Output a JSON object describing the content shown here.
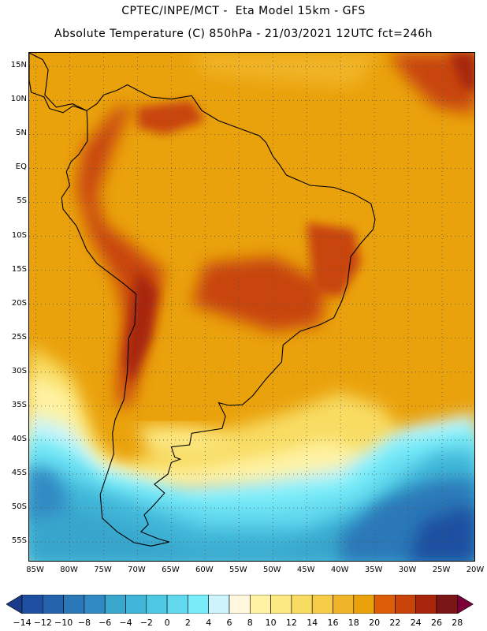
{
  "header": {
    "line1": "CPTEC/INPE/MCT -  Eta Model 15km - GFS",
    "line2": "Absolute Temperature (C) 850hPa - 21/03/2021 12UTC fct=246h"
  },
  "map": {
    "lat_range": [
      -58,
      17
    ],
    "lon_range": [
      -86,
      -20
    ],
    "lat_ticks": [
      {
        "value": 15,
        "label": "15N"
      },
      {
        "value": 10,
        "label": "10N"
      },
      {
        "value": 5,
        "label": "5N"
      },
      {
        "value": 0,
        "label": "EQ"
      },
      {
        "value": -5,
        "label": "5S"
      },
      {
        "value": -10,
        "label": "10S"
      },
      {
        "value": -15,
        "label": "15S"
      },
      {
        "value": -20,
        "label": "20S"
      },
      {
        "value": -25,
        "label": "25S"
      },
      {
        "value": -30,
        "label": "30S"
      },
      {
        "value": -35,
        "label": "35S"
      },
      {
        "value": -40,
        "label": "40S"
      },
      {
        "value": -45,
        "label": "45S"
      },
      {
        "value": -50,
        "label": "50S"
      },
      {
        "value": -55,
        "label": "55S"
      }
    ],
    "lon_ticks": [
      {
        "value": -85,
        "label": "85W"
      },
      {
        "value": -80,
        "label": "80W"
      },
      {
        "value": -75,
        "label": "75W"
      },
      {
        "value": -70,
        "label": "70W"
      },
      {
        "value": -65,
        "label": "65W"
      },
      {
        "value": -60,
        "label": "60W"
      },
      {
        "value": -55,
        "label": "55W"
      },
      {
        "value": -50,
        "label": "50W"
      },
      {
        "value": -45,
        "label": "45W"
      },
      {
        "value": -40,
        "label": "40W"
      },
      {
        "value": -35,
        "label": "35W"
      },
      {
        "value": -30,
        "label": "30W"
      },
      {
        "value": -25,
        "label": "25W"
      },
      {
        "value": -20,
        "label": "20W"
      }
    ],
    "grid": "dotted",
    "coastline_outline": [
      [
        -77.5,
        8.5
      ],
      [
        -76,
        9.5
      ],
      [
        -75,
        10.8
      ],
      [
        -73,
        11.5
      ],
      [
        -71.5,
        12.3
      ],
      [
        -70,
        11.5
      ],
      [
        -68,
        10.5
      ],
      [
        -65,
        10.2
      ],
      [
        -62,
        10.7
      ],
      [
        -60.5,
        8.5
      ],
      [
        -58,
        7
      ],
      [
        -55,
        5.9
      ],
      [
        -52,
        4.8
      ],
      [
        -51,
        3.8
      ],
      [
        -50,
        1.8
      ],
      [
        -49,
        0.5
      ],
      [
        -48,
        -1
      ],
      [
        -44.5,
        -2.5
      ],
      [
        -41,
        -2.8
      ],
      [
        -38,
        -3.8
      ],
      [
        -35.5,
        -5.2
      ],
      [
        -34.9,
        -7.5
      ],
      [
        -35.2,
        -9
      ],
      [
        -37,
        -11
      ],
      [
        -38.5,
        -13
      ],
      [
        -39,
        -17
      ],
      [
        -39.8,
        -19.5
      ],
      [
        -41,
        -22
      ],
      [
        -43,
        -23
      ],
      [
        -46,
        -24
      ],
      [
        -48.5,
        -26
      ],
      [
        -48.7,
        -28.5
      ],
      [
        -51,
        -31
      ],
      [
        -53,
        -33.5
      ],
      [
        -54.5,
        -34.8
      ],
      [
        -56.5,
        -34.9
      ],
      [
        -58,
        -34.5
      ],
      [
        -57,
        -36.5
      ],
      [
        -57.5,
        -38.3
      ],
      [
        -62,
        -39
      ],
      [
        -62.3,
        -40.7
      ],
      [
        -65,
        -41
      ],
      [
        -64.5,
        -42.5
      ],
      [
        -63.7,
        -42.8
      ],
      [
        -65,
        -43.3
      ],
      [
        -65.5,
        -45
      ],
      [
        -67.5,
        -46.5
      ],
      [
        -66,
        -47.8
      ],
      [
        -67.8,
        -49.8
      ],
      [
        -69,
        -51
      ],
      [
        -68.4,
        -52.4
      ],
      [
        -69.5,
        -53.5
      ],
      [
        -67,
        -54.5
      ],
      [
        -65.3,
        -55
      ],
      [
        -68,
        -55.6
      ],
      [
        -70.5,
        -55.1
      ],
      [
        -73,
        -53.5
      ],
      [
        -75.2,
        -51.5
      ],
      [
        -75.5,
        -48
      ],
      [
        -74.5,
        -45
      ],
      [
        -73.5,
        -42
      ],
      [
        -73.7,
        -39
      ],
      [
        -73.3,
        -37
      ],
      [
        -72,
        -34
      ],
      [
        -71.5,
        -30
      ],
      [
        -71.3,
        -25
      ],
      [
        -70.4,
        -23
      ],
      [
        -70.2,
        -18.5
      ],
      [
        -72,
        -17
      ],
      [
        -76,
        -14
      ],
      [
        -77.5,
        -12
      ],
      [
        -79,
        -8.5
      ],
      [
        -81,
        -6
      ],
      [
        -81.2,
        -4.3
      ],
      [
        -80,
        -2.5
      ],
      [
        -80.5,
        -0.5
      ],
      [
        -79.8,
        1
      ],
      [
        -78.7,
        2
      ],
      [
        -77.4,
        4
      ],
      [
        -77.4,
        6.8
      ],
      [
        -77.5,
        8.5
      ]
    ],
    "central_america_outline": [
      [
        -77.5,
        8.5
      ],
      [
        -79.5,
        9.2
      ],
      [
        -81,
        8.2
      ],
      [
        -83,
        8.8
      ],
      [
        -83.8,
        10.5
      ],
      [
        -85.7,
        11.2
      ],
      [
        -86,
        13
      ],
      [
        -86,
        17
      ],
      [
        -84,
        16
      ],
      [
        -83.2,
        14.5
      ],
      [
        -83.5,
        12
      ],
      [
        -83.7,
        10.8
      ],
      [
        -82,
        9
      ],
      [
        -79.6,
        9.5
      ],
      [
        -77.5,
        8.5
      ]
    ],
    "color_scale": {
      "levels": [
        -14,
        -12,
        -10,
        -8,
        -6,
        -4,
        -2,
        0,
        2,
        4,
        6,
        8,
        10,
        12,
        14,
        16,
        18,
        20,
        22,
        24,
        26,
        28
      ],
      "colors": [
        "#1a3a8a",
        "#1f4fa0",
        "#2563ad",
        "#2a78b8",
        "#3189c3",
        "#39a6cc",
        "#3fb6d8",
        "#4fc8e4",
        "#62d8ee",
        "#78ecf8",
        "#ccf4fa",
        "#fff7de",
        "#fff2a3",
        "#fce983",
        "#f8dc62",
        "#f5cb48",
        "#f0b428",
        "#eaa20c",
        "#dc5e08",
        "#c8440a",
        "#a8260c",
        "#7a1616",
        "#7d0038"
      ],
      "units": "C",
      "field_summary": [
        {
          "region": "tropical Atlantic and northern interior",
          "range_c": "18–22"
        },
        {
          "region": "Andes foothills, Gran Chaco, central Brazil",
          "range_c": "22–24"
        },
        {
          "region": "eastern Atlantic near 15N 20W",
          "range_c": "24–26"
        },
        {
          "region": "southern Argentina around 40S",
          "range_c": "8–14"
        },
        {
          "region": "South Atlantic 45–55S",
          "range_c": "-8–4"
        },
        {
          "region": "far southeast corner near 55S 20W",
          "range_c": "-12–-8"
        }
      ]
    }
  }
}
